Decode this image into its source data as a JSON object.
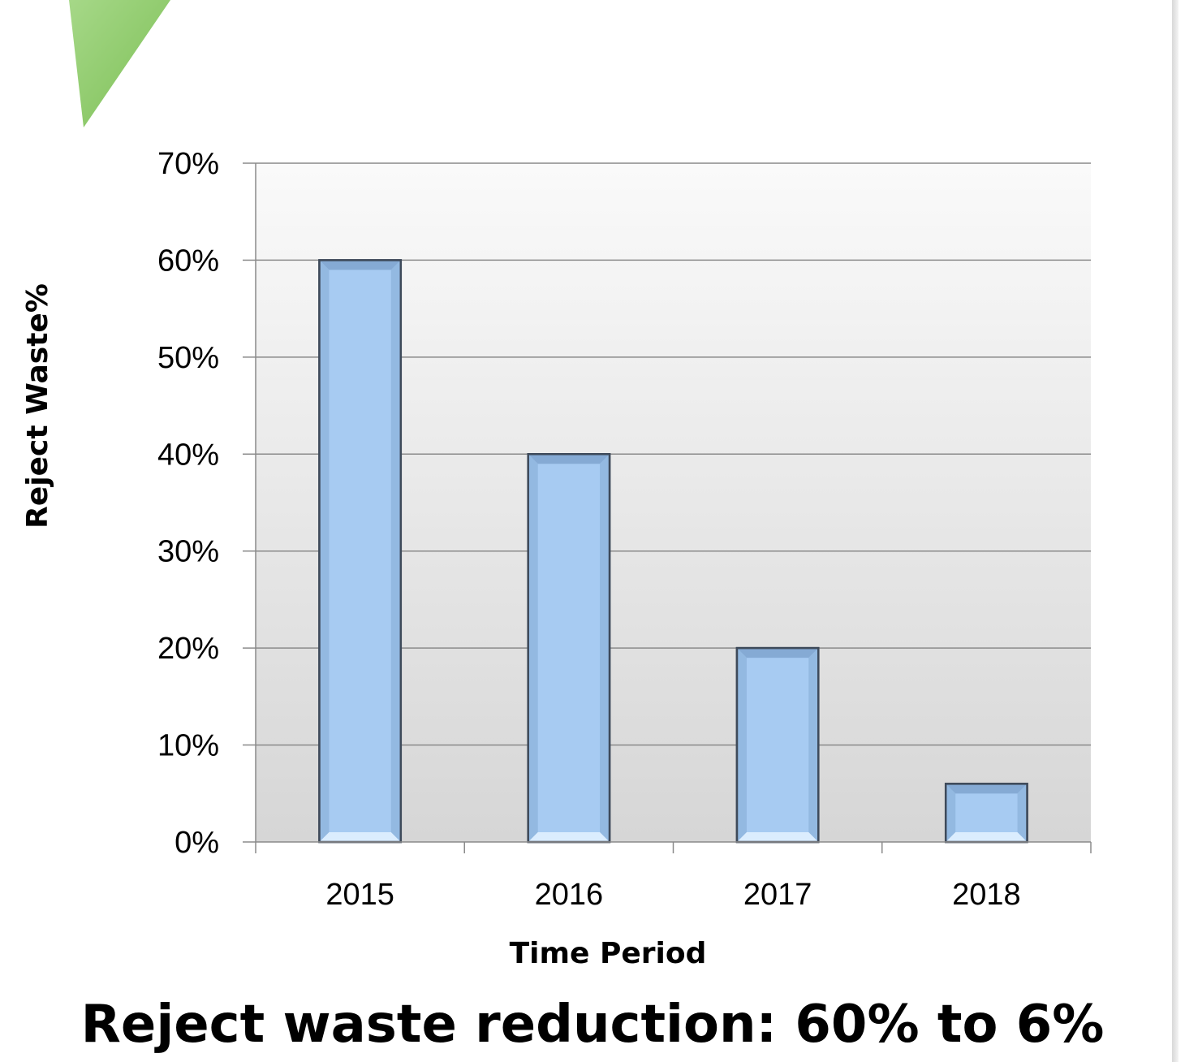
{
  "chart_data": {
    "type": "bar",
    "categories": [
      "2015",
      "2016",
      "2017",
      "2018"
    ],
    "values": [
      60,
      40,
      20,
      6
    ],
    "value_unit": "%",
    "xlabel": "Time Period",
    "ylabel": "Reject Waste%",
    "ylim": [
      0,
      70
    ],
    "yticks": [
      "0%",
      "10%",
      "20%",
      "30%",
      "40%",
      "50%",
      "60%",
      "70%"
    ],
    "grid": true,
    "legend": "none",
    "bar_color": "#a7cbf2",
    "bar_edge_color": "#3e4a5a",
    "plot_background": [
      "#fafafa",
      "#d6d6d6"
    ]
  },
  "caption": "Reject waste reduction: 60% to 6%",
  "decoration": {
    "corner_triangle_color": "#8cc866"
  }
}
